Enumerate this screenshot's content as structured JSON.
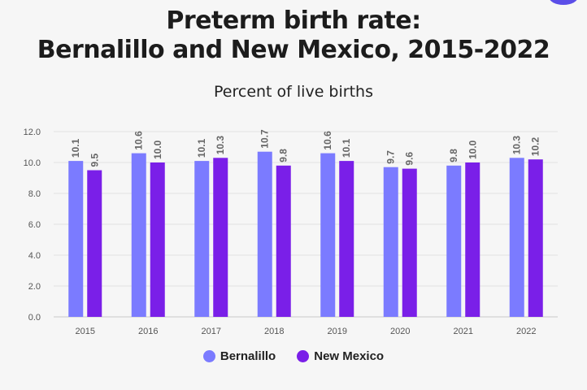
{
  "header": {
    "title_line1": "Preterm birth rate:",
    "title_line2": "Bernalillo and New Mexico, 2015-2022",
    "subtitle": "Percent of live births"
  },
  "chart_data": {
    "type": "bar",
    "title": "Preterm birth rate: Bernalillo and New Mexico, 2015-2022",
    "ylabel": "Percent of live births",
    "categories": [
      "2015",
      "2016",
      "2017",
      "2018",
      "2019",
      "2020",
      "2021",
      "2022"
    ],
    "series": [
      {
        "name": "Bernalillo",
        "color": "#7b7bff",
        "values": [
          10.1,
          10.6,
          10.1,
          10.7,
          10.6,
          9.7,
          9.8,
          10.3
        ]
      },
      {
        "name": "New Mexico",
        "color": "#7a1fe8",
        "values": [
          9.5,
          10.0,
          10.3,
          9.8,
          10.1,
          9.6,
          10.0,
          10.2
        ]
      }
    ],
    "yticks": [
      "0.0",
      "2.0",
      "4.0",
      "6.0",
      "8.0",
      "10.0",
      "12.0"
    ],
    "ylim": [
      0,
      12
    ],
    "legend_position": "bottom",
    "grid": true
  }
}
